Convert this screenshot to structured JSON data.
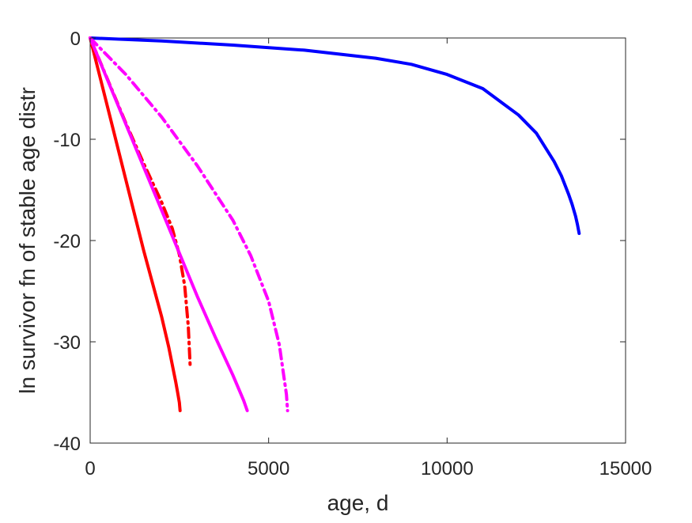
{
  "chart_data": {
    "type": "line",
    "title": "",
    "xlabel": "age, d",
    "ylabel": "ln survivor fn of stable age distr",
    "xlim": [
      0,
      15000
    ],
    "ylim": [
      -40,
      0
    ],
    "x_ticks": [
      0,
      5000,
      10000,
      15000
    ],
    "x_tick_labels": [
      "0",
      "5000",
      "10000",
      "15000"
    ],
    "y_ticks": [
      0,
      -10,
      -20,
      -30,
      -40
    ],
    "y_tick_labels": [
      "0",
      "-10",
      "-20",
      "-30",
      "-40"
    ],
    "grid": false,
    "legend": "none",
    "series": [
      {
        "color": "#0000ff",
        "style": "solid",
        "x": [
          0,
          2000,
          4000,
          6000,
          8000,
          9000,
          10000,
          11000,
          12000,
          12500,
          13000,
          13200,
          13400,
          13500,
          13600,
          13650,
          13700
        ],
        "y": [
          0,
          -0.3,
          -0.7,
          -1.2,
          -2.0,
          -2.6,
          -3.6,
          -5.0,
          -7.6,
          -9.4,
          -12.2,
          -13.6,
          -15.4,
          -16.4,
          -17.6,
          -18.4,
          -19.3
        ]
      },
      {
        "color": "#ff0000",
        "style": "solid",
        "x": [
          0,
          500,
          1000,
          1500,
          2000,
          2200,
          2400,
          2450,
          2500,
          2520
        ],
        "y": [
          0,
          -7,
          -14,
          -21,
          -27.5,
          -30.5,
          -34,
          -35,
          -36,
          -36.8
        ]
      },
      {
        "color": "#ff0000",
        "style": "dashdot",
        "x": [
          0,
          500,
          1000,
          1500,
          2000,
          2300,
          2500,
          2650,
          2750,
          2800
        ],
        "y": [
          0,
          -4.2,
          -8.4,
          -12.4,
          -16.2,
          -18.8,
          -21.4,
          -24.5,
          -28.5,
          -32.3
        ]
      },
      {
        "color": "#ff00ff",
        "style": "solid",
        "x": [
          0,
          1000,
          2000,
          3000,
          3500,
          4000,
          4300,
          4400
        ],
        "y": [
          0,
          -8.5,
          -17,
          -25.5,
          -29.5,
          -33.3,
          -35.8,
          -36.8
        ]
      },
      {
        "color": "#ff00ff",
        "style": "dashdot",
        "x": [
          0,
          1000,
          2000,
          3000,
          4000,
          4500,
          5000,
          5300,
          5500,
          5530
        ],
        "y": [
          0,
          -3.6,
          -7.8,
          -12.6,
          -18,
          -21.5,
          -26,
          -30.3,
          -35.2,
          -36.8
        ]
      }
    ]
  }
}
